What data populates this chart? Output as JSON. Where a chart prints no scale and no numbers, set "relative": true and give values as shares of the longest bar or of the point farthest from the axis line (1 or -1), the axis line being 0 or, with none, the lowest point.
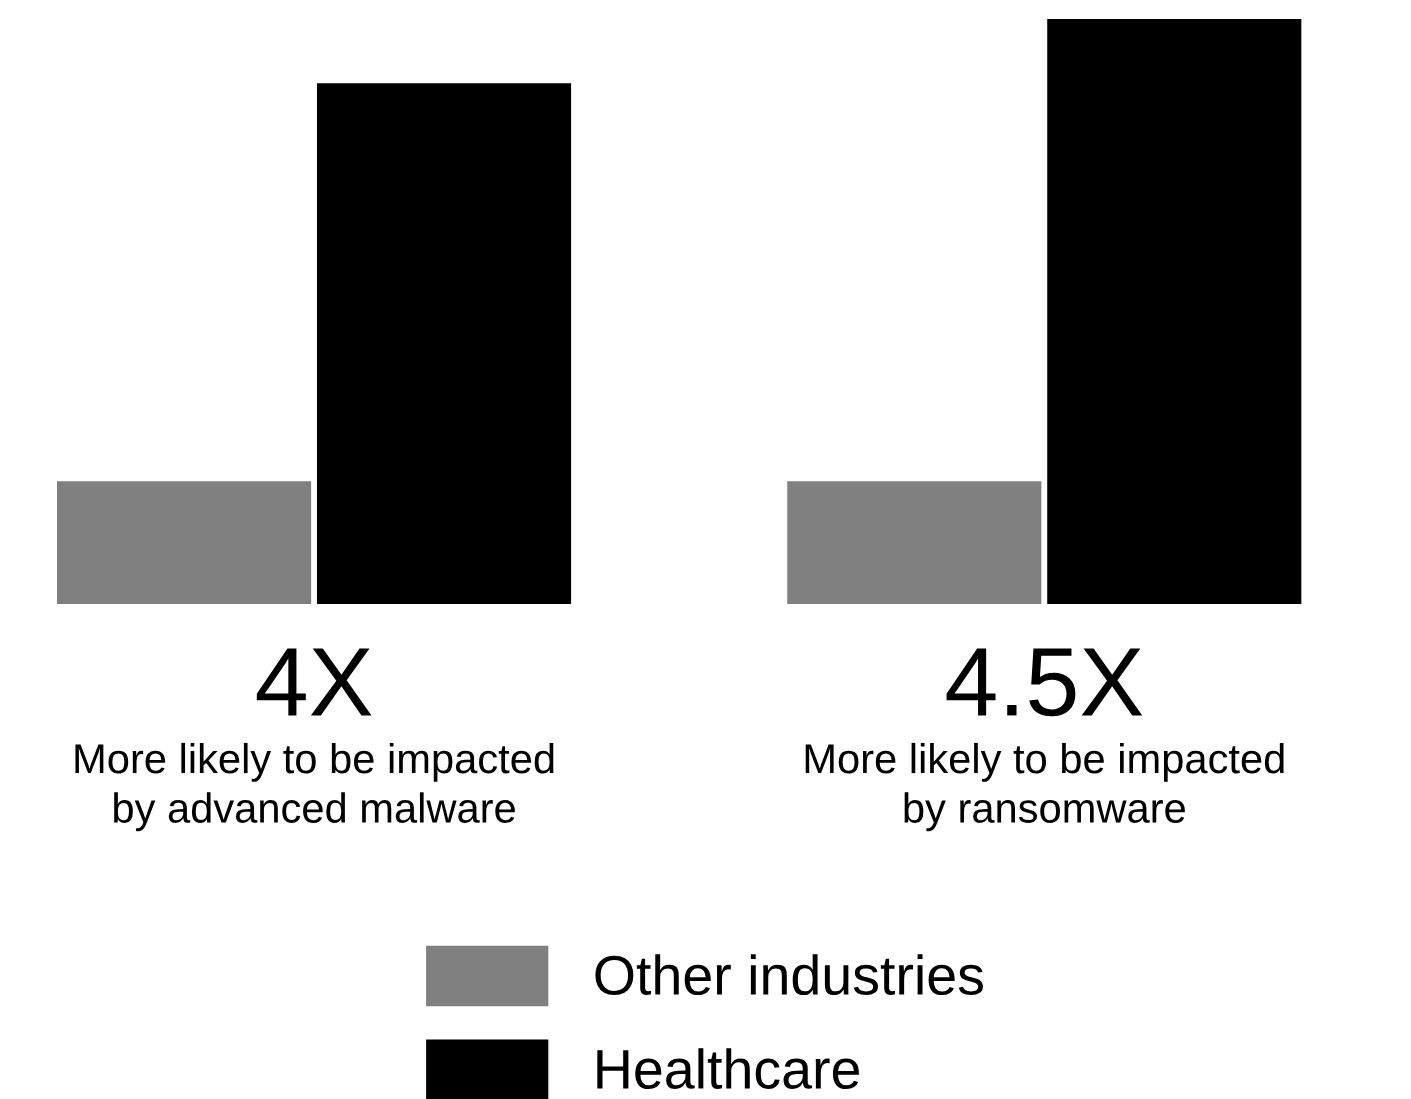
{
  "chart_data": {
    "type": "bar",
    "relative": true,
    "categories": [
      "More likely to be impacted\nby advanced malware",
      "More likely to be impacted\nby ransomware"
    ],
    "series": [
      {
        "name": "Other industries",
        "color": "#808080",
        "values": [
          0.21,
          0.21
        ]
      },
      {
        "name": "Healthcare",
        "color": "#000000",
        "values": [
          0.89,
          1.0
        ]
      }
    ],
    "annotations": [
      "4X",
      "4.5X"
    ],
    "legend": "bottom",
    "grid": false
  }
}
